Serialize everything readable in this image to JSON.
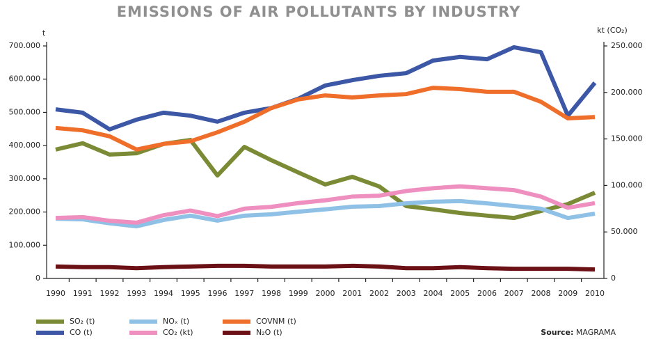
{
  "chart_data": {
    "type": "line",
    "title": "EMISSIONS OF AIR POLLUTANTS BY INDUSTRY",
    "y_label": "t",
    "y2_label": "kt (CO₂)",
    "categories": [
      "1990",
      "1991",
      "1992",
      "1993",
      "1994",
      "1995",
      "1996",
      "1997",
      "1998",
      "1999",
      "2000",
      "2001",
      "2002",
      "2003",
      "2004",
      "2005",
      "2006",
      "2007",
      "2008",
      "2009",
      "2010"
    ],
    "ylim": [
      0,
      700000
    ],
    "yticks": [
      0,
      {
        "value": 100000,
        "label": "100.000"
      },
      {
        "value": 200000,
        "label": "200.000"
      },
      {
        "value": 300000,
        "label": "300.000"
      },
      {
        "value": 400000,
        "label": "400.000"
      },
      {
        "value": 500000,
        "label": "500.000"
      },
      {
        "value": 600000,
        "label": "600.000"
      },
      {
        "value": 700000,
        "label": "700.000"
      }
    ],
    "y2lim": [
      0,
      250000
    ],
    "y2ticks": [
      0,
      {
        "value": 50000,
        "label": "50.000"
      },
      {
        "value": 100000,
        "label": "100.000"
      },
      {
        "value": 150000,
        "label": "150.000"
      },
      {
        "value": 200000,
        "label": "200.000"
      },
      {
        "value": 250000,
        "label": "250.000"
      }
    ],
    "series": [
      {
        "name": "SO₂ (t)",
        "color": "#7a8a35",
        "values": [
          388000,
          407000,
          373000,
          377000,
          405000,
          417000,
          310000,
          396000,
          356000,
          319000,
          283000,
          306000,
          277000,
          218000,
          208000,
          197000,
          189000,
          182000,
          203000,
          224000,
          258000
        ]
      },
      {
        "name": "CO (t)",
        "color": "#3b57a5",
        "values": [
          509000,
          499000,
          449000,
          478000,
          499000,
          490000,
          472000,
          499000,
          513000,
          541000,
          581000,
          597000,
          610000,
          618000,
          656000,
          667000,
          660000,
          696000,
          681000,
          490000,
          589000
        ]
      },
      {
        "name": "NOₓ (t)",
        "color": "#8fc0e6",
        "values": [
          180000,
          178000,
          166000,
          157000,
          176000,
          189000,
          174000,
          189000,
          193000,
          201000,
          208000,
          216000,
          218000,
          226000,
          231000,
          233000,
          226000,
          218000,
          210000,
          182000,
          195000
        ]
      },
      {
        "name": "CO₂ (kt)",
        "color": "#ef8fc0",
        "axis": "y2",
        "values": [
          65000,
          66000,
          62000,
          60000,
          68000,
          73000,
          67000,
          75000,
          77000,
          81000,
          84000,
          88000,
          89000,
          94000,
          97000,
          99000,
          97000,
          95000,
          88000,
          76000,
          81000
        ]
      },
      {
        "name": "COVNM (t)",
        "color": "#ef6e2a",
        "values": [
          453000,
          446000,
          428000,
          388000,
          405000,
          413000,
          440000,
          472000,
          513000,
          539000,
          551000,
          545000,
          551000,
          555000,
          574000,
          570000,
          562000,
          562000,
          532000,
          482000,
          486000
        ]
      },
      {
        "name": "N₂O (t)",
        "color": "#6b1015",
        "values": [
          36000,
          34000,
          34000,
          31000,
          34000,
          36000,
          38000,
          38000,
          36000,
          36000,
          36000,
          38000,
          36000,
          31000,
          31000,
          34000,
          31000,
          29000,
          29000,
          29000,
          27000
        ]
      }
    ],
    "source": {
      "label": "Source:",
      "text": "MAGRAMA"
    }
  }
}
